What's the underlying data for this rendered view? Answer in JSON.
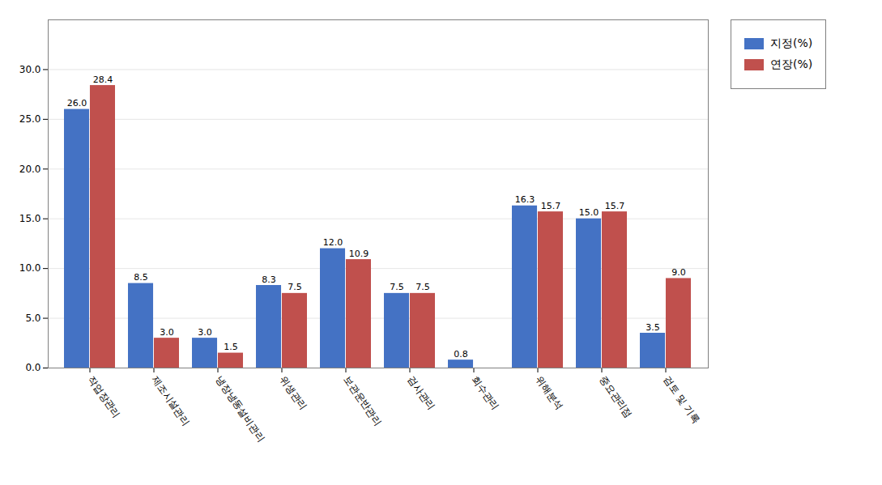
{
  "chart_data": {
    "type": "bar",
    "categories": [
      "작업장관리",
      "제조시설관리",
      "냉장냉동설비관리",
      "위생관리",
      "보관운반관리",
      "검사관리",
      "회수관리",
      "위해분석",
      "중요관리점",
      "검토 및 기록"
    ],
    "series": [
      {
        "name": "지정(%)",
        "color": "#4472C4",
        "values": [
          26.0,
          8.5,
          3.0,
          8.3,
          12.0,
          7.5,
          0.8,
          16.3,
          15.0,
          3.5
        ],
        "value_labels": [
          "26.0",
          "8.5",
          "3.0",
          "8.3",
          "12.0",
          "7.5",
          "0.8",
          "16.3",
          "15.0",
          "3.5"
        ]
      },
      {
        "name": "연장(%)",
        "color": "#C0504D",
        "values": [
          28.4,
          3.0,
          1.5,
          7.5,
          10.9,
          7.5,
          0.0,
          15.7,
          15.7,
          9.0
        ],
        "value_labels": [
          "28.4",
          "3.0",
          "1.5",
          "7.5",
          "10.9",
          "7.5",
          null,
          "15.7",
          "15.7",
          "9.0"
        ]
      }
    ],
    "ylim": [
      0,
      35
    ],
    "yticks": [
      {
        "value": 0,
        "label": "0.0"
      },
      {
        "value": 5,
        "label": "5.0"
      },
      {
        "value": 10,
        "label": "10.0"
      },
      {
        "value": 15,
        "label": "15.0"
      },
      {
        "value": 20,
        "label": "20.0"
      },
      {
        "value": 25,
        "label": "25.0"
      },
      {
        "value": 30,
        "label": "30.0"
      }
    ],
    "grid": true,
    "legend": "upper right",
    "data_labels": true
  }
}
